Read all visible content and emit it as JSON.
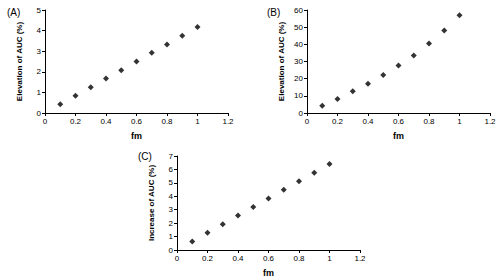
{
  "chart_data": [
    {
      "type": "scatter",
      "title": "(A)",
      "x_label": "fm",
      "y_label": "Elevation of AUC (%)",
      "x": [
        0.1,
        0.2,
        0.3,
        0.4,
        0.5,
        0.6,
        0.7,
        0.8,
        0.9,
        1.0
      ],
      "values": [
        0.42,
        0.84,
        1.25,
        1.67,
        2.08,
        2.5,
        2.92,
        3.33,
        3.75,
        4.17
      ],
      "xlim": [
        0,
        1.2
      ],
      "xticks": [
        0,
        0.2,
        0.4,
        0.6,
        0.8,
        1,
        1.2
      ],
      "ylim": [
        0,
        5
      ],
      "yticks": [
        0,
        1,
        2,
        3,
        4,
        5
      ],
      "grid": false,
      "marker": "diamond",
      "color": "#000000"
    },
    {
      "type": "scatter",
      "title": "(B)",
      "x_label": "fm",
      "y_label": "Elevation of AUC (%)",
      "x": [
        0.1,
        0.2,
        0.3,
        0.4,
        0.5,
        0.6,
        0.7,
        0.8,
        0.9,
        1.0
      ],
      "values": [
        4.2,
        8.2,
        12.6,
        17.1,
        22.2,
        27.6,
        33.5,
        40.5,
        48.1,
        57.0
      ],
      "xlim": [
        0,
        1.2
      ],
      "xticks": [
        0,
        0.2,
        0.4,
        0.6,
        0.8,
        1,
        1.2
      ],
      "ylim": [
        0,
        60
      ],
      "yticks": [
        0,
        10,
        20,
        30,
        40,
        50,
        60
      ],
      "grid": false,
      "marker": "diamond",
      "color": "#000000"
    },
    {
      "type": "scatter",
      "title": "(C)",
      "x_label": "fm",
      "y_label": "Increase of AUC (%)",
      "x": [
        0.1,
        0.2,
        0.3,
        0.4,
        0.5,
        0.6,
        0.7,
        0.8,
        0.9,
        1.0
      ],
      "values": [
        0.64,
        1.28,
        1.92,
        2.56,
        3.2,
        3.84,
        4.48,
        5.12,
        5.76,
        6.4
      ],
      "xlim": [
        0,
        1.2
      ],
      "xticks": [
        0,
        0.2,
        0.4,
        0.6,
        0.8,
        1,
        1.2
      ],
      "ylim": [
        0,
        7
      ],
      "yticks": [
        0,
        1,
        2,
        3,
        4,
        5,
        6,
        7
      ],
      "grid": false,
      "marker": "diamond",
      "color": "#000000"
    }
  ]
}
